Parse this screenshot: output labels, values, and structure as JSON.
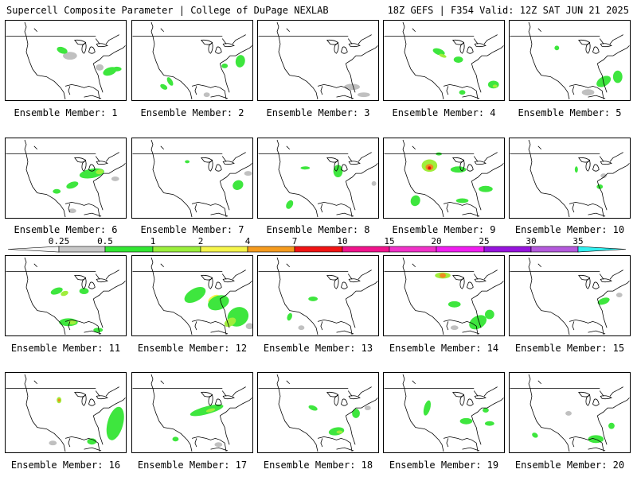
{
  "header": {
    "title_left": "Supercell Composite Parameter | College of DuPage NEXLAB",
    "title_right": "18Z GEFS | F354 Valid: 12Z SAT JUN 21 2025"
  },
  "colorbar": {
    "ticks": [
      "0.25",
      "0.5",
      "1",
      "2",
      "4",
      "7",
      "10",
      "15",
      "20",
      "25",
      "30",
      "35"
    ],
    "colors": [
      "#c8c8c8",
      "#32e632",
      "#9bef3c",
      "#f5f54b",
      "#f59b1e",
      "#f01414",
      "#f0148c",
      "#f032c8",
      "#f01ef0",
      "#9614dc",
      "#b45adc",
      "#32f0f0"
    ]
  },
  "panels": [
    {
      "label": "Ensemble Member: 1"
    },
    {
      "label": "Ensemble Member: 2"
    },
    {
      "label": "Ensemble Member: 3"
    },
    {
      "label": "Ensemble Member: 4"
    },
    {
      "label": "Ensemble Member: 5"
    },
    {
      "label": "Ensemble Member: 6"
    },
    {
      "label": "Ensemble Member: 7"
    },
    {
      "label": "Ensemble Member: 8"
    },
    {
      "label": "Ensemble Member: 9"
    },
    {
      "label": "Ensemble Member: 10"
    },
    {
      "label": "Ensemble Member: 11"
    },
    {
      "label": "Ensemble Member: 12"
    },
    {
      "label": "Ensemble Member: 13"
    },
    {
      "label": "Ensemble Member: 14"
    },
    {
      "label": "Ensemble Member: 15"
    },
    {
      "label": "Ensemble Member: 16"
    },
    {
      "label": "Ensemble Member: 17"
    },
    {
      "label": "Ensemble Member: 18"
    },
    {
      "label": "Ensemble Member: 19"
    },
    {
      "label": "Ensemble Member: 20"
    }
  ]
}
